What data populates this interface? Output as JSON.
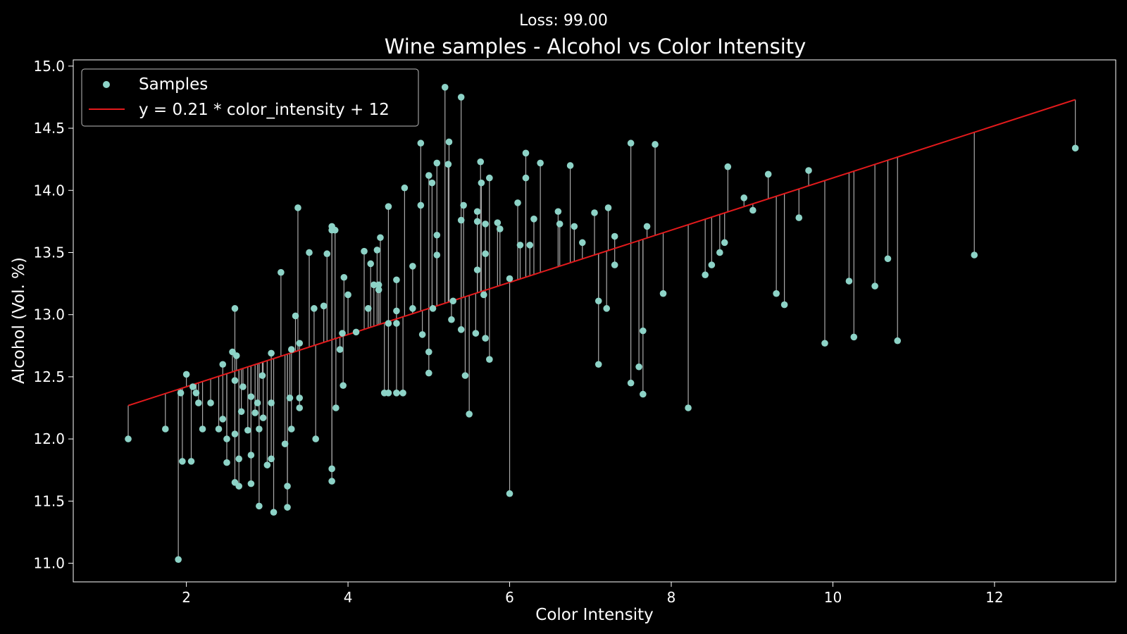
{
  "suptitle": "Loss: 99.00",
  "chart_data": {
    "type": "scatter",
    "title": "Wine samples - Alcohol vs Color Intensity",
    "xlabel": "Color Intensity",
    "ylabel": "Alcohol (Vol. %)",
    "xlim": [
      0.6,
      13.5
    ],
    "ylim": [
      10.85,
      15.05
    ],
    "xticks": [
      2,
      4,
      6,
      8,
      10,
      12
    ],
    "yticks": [
      11.0,
      11.5,
      12.0,
      12.5,
      13.0,
      13.5,
      14.0,
      14.5,
      15.0
    ],
    "legend_position": "upper-left",
    "grid": false,
    "series": [
      {
        "name": "Samples",
        "kind": "scatter",
        "color": "#8dd3c7",
        "points": [
          [
            1.28,
            12.0
          ],
          [
            1.74,
            12.08
          ],
          [
            1.9,
            11.03
          ],
          [
            1.93,
            12.37
          ],
          [
            1.95,
            11.82
          ],
          [
            2.0,
            12.52
          ],
          [
            2.06,
            11.82
          ],
          [
            2.08,
            12.42
          ],
          [
            2.12,
            12.37
          ],
          [
            2.15,
            12.29
          ],
          [
            2.2,
            12.08
          ],
          [
            2.3,
            12.29
          ],
          [
            2.4,
            12.08
          ],
          [
            2.45,
            12.6
          ],
          [
            2.45,
            12.16
          ],
          [
            2.5,
            12.0
          ],
          [
            2.5,
            11.81
          ],
          [
            2.57,
            12.7
          ],
          [
            2.6,
            13.05
          ],
          [
            2.6,
            12.47
          ],
          [
            2.6,
            12.04
          ],
          [
            2.6,
            11.65
          ],
          [
            2.62,
            12.67
          ],
          [
            2.65,
            11.84
          ],
          [
            2.65,
            11.62
          ],
          [
            2.68,
            12.22
          ],
          [
            2.7,
            12.42
          ],
          [
            2.76,
            12.07
          ],
          [
            2.8,
            12.34
          ],
          [
            2.8,
            11.87
          ],
          [
            2.8,
            11.64
          ],
          [
            2.85,
            12.21
          ],
          [
            2.88,
            12.29
          ],
          [
            2.9,
            12.08
          ],
          [
            2.9,
            11.46
          ],
          [
            2.94,
            12.51
          ],
          [
            2.95,
            12.17
          ],
          [
            3.0,
            11.79
          ],
          [
            3.05,
            12.29
          ],
          [
            3.05,
            12.69
          ],
          [
            3.05,
            11.84
          ],
          [
            3.08,
            11.41
          ],
          [
            3.17,
            13.34
          ],
          [
            3.22,
            11.96
          ],
          [
            3.25,
            11.62
          ],
          [
            3.25,
            11.45
          ],
          [
            3.28,
            12.33
          ],
          [
            3.3,
            12.72
          ],
          [
            3.3,
            12.08
          ],
          [
            3.35,
            12.99
          ],
          [
            3.38,
            13.86
          ],
          [
            3.4,
            12.77
          ],
          [
            3.4,
            12.25
          ],
          [
            3.4,
            12.33
          ],
          [
            3.52,
            13.5
          ],
          [
            3.58,
            13.05
          ],
          [
            3.6,
            12.0
          ],
          [
            3.7,
            13.07
          ],
          [
            3.74,
            13.49
          ],
          [
            3.8,
            13.71
          ],
          [
            3.8,
            13.68
          ],
          [
            3.8,
            11.76
          ],
          [
            3.8,
            11.66
          ],
          [
            3.84,
            13.68
          ],
          [
            3.85,
            12.25
          ],
          [
            3.9,
            12.72
          ],
          [
            3.93,
            12.85
          ],
          [
            3.94,
            12.43
          ],
          [
            3.95,
            13.3
          ],
          [
            4.0,
            13.16
          ],
          [
            4.1,
            12.86
          ],
          [
            4.2,
            13.51
          ],
          [
            4.25,
            13.05
          ],
          [
            4.28,
            13.41
          ],
          [
            4.32,
            13.24
          ],
          [
            4.36,
            13.52
          ],
          [
            4.38,
            13.24
          ],
          [
            4.38,
            13.2
          ],
          [
            4.4,
            13.62
          ],
          [
            4.45,
            12.37
          ],
          [
            4.5,
            13.87
          ],
          [
            4.5,
            12.93
          ],
          [
            4.5,
            12.37
          ],
          [
            4.6,
            13.28
          ],
          [
            4.6,
            13.03
          ],
          [
            4.6,
            12.93
          ],
          [
            4.6,
            12.37
          ],
          [
            4.68,
            12.37
          ],
          [
            4.7,
            14.02
          ],
          [
            4.8,
            13.39
          ],
          [
            4.8,
            13.05
          ],
          [
            4.9,
            14.38
          ],
          [
            4.9,
            13.88
          ],
          [
            4.92,
            12.84
          ],
          [
            5.0,
            14.12
          ],
          [
            5.0,
            12.7
          ],
          [
            5.0,
            12.53
          ],
          [
            5.04,
            14.06
          ],
          [
            5.05,
            13.05
          ],
          [
            5.1,
            14.22
          ],
          [
            5.1,
            13.64
          ],
          [
            5.1,
            13.48
          ],
          [
            5.2,
            14.83
          ],
          [
            5.24,
            14.21
          ],
          [
            5.25,
            14.39
          ],
          [
            5.28,
            12.96
          ],
          [
            5.3,
            13.11
          ],
          [
            5.4,
            14.75
          ],
          [
            5.4,
            13.76
          ],
          [
            5.4,
            12.88
          ],
          [
            5.43,
            13.88
          ],
          [
            5.45,
            12.51
          ],
          [
            5.5,
            12.2
          ],
          [
            5.58,
            12.85
          ],
          [
            5.6,
            13.83
          ],
          [
            5.6,
            13.75
          ],
          [
            5.6,
            13.36
          ],
          [
            5.64,
            14.23
          ],
          [
            5.65,
            14.06
          ],
          [
            5.68,
            13.16
          ],
          [
            5.7,
            13.73
          ],
          [
            5.7,
            13.49
          ],
          [
            5.7,
            12.81
          ],
          [
            5.75,
            14.1
          ],
          [
            5.75,
            12.64
          ],
          [
            5.85,
            13.74
          ],
          [
            5.88,
            13.69
          ],
          [
            6.0,
            13.29
          ],
          [
            6.0,
            11.56
          ],
          [
            6.1,
            13.9
          ],
          [
            6.13,
            13.56
          ],
          [
            6.2,
            14.3
          ],
          [
            6.2,
            14.1
          ],
          [
            6.25,
            13.56
          ],
          [
            6.3,
            13.77
          ],
          [
            6.38,
            14.22
          ],
          [
            6.6,
            13.83
          ],
          [
            6.62,
            13.73
          ],
          [
            6.75,
            14.2
          ],
          [
            6.8,
            13.71
          ],
          [
            6.9,
            13.58
          ],
          [
            7.05,
            13.82
          ],
          [
            7.1,
            13.11
          ],
          [
            7.1,
            12.6
          ],
          [
            7.2,
            13.05
          ],
          [
            7.22,
            13.86
          ],
          [
            7.3,
            13.63
          ],
          [
            7.3,
            13.4
          ],
          [
            7.5,
            14.38
          ],
          [
            7.5,
            12.45
          ],
          [
            7.6,
            12.58
          ],
          [
            7.65,
            12.87
          ],
          [
            7.65,
            12.36
          ],
          [
            7.7,
            13.71
          ],
          [
            7.8,
            14.37
          ],
          [
            7.9,
            13.17
          ],
          [
            8.21,
            12.25
          ],
          [
            8.42,
            13.32
          ],
          [
            8.5,
            13.4
          ],
          [
            8.6,
            13.5
          ],
          [
            8.66,
            13.58
          ],
          [
            8.7,
            14.19
          ],
          [
            8.9,
            13.94
          ],
          [
            9.01,
            13.84
          ],
          [
            9.2,
            14.13
          ],
          [
            9.3,
            13.17
          ],
          [
            9.4,
            13.08
          ],
          [
            9.58,
            13.78
          ],
          [
            9.7,
            14.16
          ],
          [
            9.9,
            12.77
          ],
          [
            10.2,
            13.27
          ],
          [
            10.26,
            12.82
          ],
          [
            10.52,
            13.23
          ],
          [
            10.68,
            13.45
          ],
          [
            10.8,
            12.79
          ],
          [
            11.75,
            13.48
          ],
          [
            13.0,
            14.34
          ]
        ]
      },
      {
        "name": "y = 0.21 * color_intensity + 12",
        "kind": "line",
        "color": "#e31a1c",
        "slope": 0.21,
        "intercept": 12
      }
    ],
    "residual_color": "#aaaaaa"
  }
}
